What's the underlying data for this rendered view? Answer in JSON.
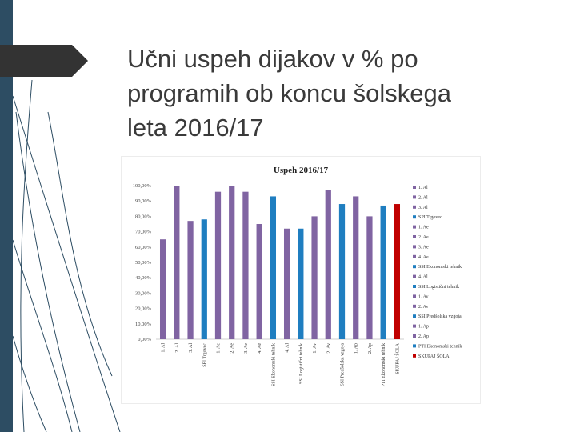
{
  "slide": {
    "title_lines": [
      "Učni uspeh dijakov v % po",
      "programih ob koncu šolskega",
      "leta 2016/17"
    ]
  },
  "colors": {
    "sidebar": "#2d4d63",
    "arrow": "#333333",
    "purple": "#8064a2",
    "blue": "#1f7ec0",
    "red": "#c00000"
  },
  "chart_data": {
    "type": "bar",
    "title": "Uspeh 2016/17",
    "xlabel": "",
    "ylabel": "",
    "ylim": [
      0,
      100
    ],
    "y_ticks": [
      "0,00%",
      "10,00%",
      "20,00%",
      "30,00%",
      "40,00%",
      "50,00%",
      "60,00%",
      "70,00%",
      "80,00%",
      "90,00%",
      "100,00%"
    ],
    "grid": false,
    "legend_position": "right",
    "categories": [
      "1. Al",
      "2. Al",
      "3. Al",
      "SPI Trgovec",
      "1. Ae",
      "2. Ae",
      "3. Ae",
      "4. Ae",
      "SSI Ekonomski tehnik",
      "4. Al",
      "SSI Logistični tehnik",
      "1. Av",
      "2. Av",
      "SSI Predšolska vzgoja",
      "1. Ap",
      "2. Ap",
      "PTI Ekonomski tehnik",
      "SKUPAJ ŠOLA"
    ],
    "values": [
      65,
      100,
      77,
      78,
      96,
      100,
      96,
      75,
      93,
      72,
      72,
      80,
      97,
      88,
      93,
      80,
      87,
      88
    ],
    "bar_colors": [
      "purple",
      "purple",
      "purple",
      "blue",
      "purple",
      "purple",
      "purple",
      "purple",
      "blue",
      "purple",
      "blue",
      "purple",
      "purple",
      "blue",
      "purple",
      "purple",
      "blue",
      "red"
    ],
    "legend": [
      "1. Al",
      "2. Al",
      "3. Al",
      "SPI Trgovec",
      "1. Ae",
      "2. Ae",
      "3. Ae",
      "4. Ae",
      "SSI Ekonomski tehnik",
      "4. Al",
      "SSI Logistični tehnik",
      "1. Av",
      "2. Av",
      "SSI Predšolska vzgoja",
      "1. Ap",
      "2. Ap",
      "PTI Ekonomski tehnik",
      "SKUPAJ ŠOLA"
    ]
  }
}
